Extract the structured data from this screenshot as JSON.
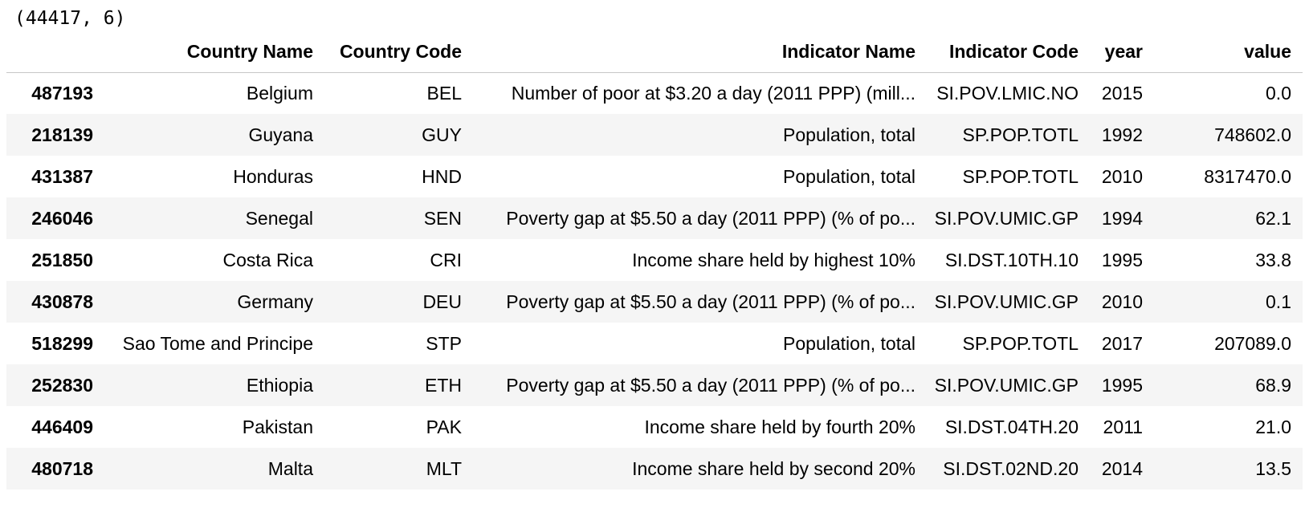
{
  "shape_output": "(44417, 6)",
  "table": {
    "columns": [
      "",
      "Country Name",
      "Country Code",
      "Indicator Name",
      "Indicator Code",
      "year",
      "value"
    ],
    "rows": [
      {
        "index": "487193",
        "cells": [
          "Belgium",
          "BEL",
          "Number of poor at $3.20 a day (2011 PPP) (mill...",
          "SI.POV.LMIC.NO",
          "2015",
          "0.0"
        ]
      },
      {
        "index": "218139",
        "cells": [
          "Guyana",
          "GUY",
          "Population, total",
          "SP.POP.TOTL",
          "1992",
          "748602.0"
        ]
      },
      {
        "index": "431387",
        "cells": [
          "Honduras",
          "HND",
          "Population, total",
          "SP.POP.TOTL",
          "2010",
          "8317470.0"
        ]
      },
      {
        "index": "246046",
        "cells": [
          "Senegal",
          "SEN",
          "Poverty gap at $5.50 a day (2011 PPP) (% of po...",
          "SI.POV.UMIC.GP",
          "1994",
          "62.1"
        ]
      },
      {
        "index": "251850",
        "cells": [
          "Costa Rica",
          "CRI",
          "Income share held by highest 10%",
          "SI.DST.10TH.10",
          "1995",
          "33.8"
        ]
      },
      {
        "index": "430878",
        "cells": [
          "Germany",
          "DEU",
          "Poverty gap at $5.50 a day (2011 PPP) (% of po...",
          "SI.POV.UMIC.GP",
          "2010",
          "0.1"
        ]
      },
      {
        "index": "518299",
        "cells": [
          "Sao Tome and Principe",
          "STP",
          "Population, total",
          "SP.POP.TOTL",
          "2017",
          "207089.0"
        ]
      },
      {
        "index": "252830",
        "cells": [
          "Ethiopia",
          "ETH",
          "Poverty gap at $5.50 a day (2011 PPP) (% of po...",
          "SI.POV.UMIC.GP",
          "1995",
          "68.9"
        ]
      },
      {
        "index": "446409",
        "cells": [
          "Pakistan",
          "PAK",
          "Income share held by fourth 20%",
          "SI.DST.04TH.20",
          "2011",
          "21.0"
        ]
      },
      {
        "index": "480718",
        "cells": [
          "Malta",
          "MLT",
          "Income share held by second 20%",
          "SI.DST.02ND.20",
          "2014",
          "13.5"
        ]
      }
    ]
  }
}
